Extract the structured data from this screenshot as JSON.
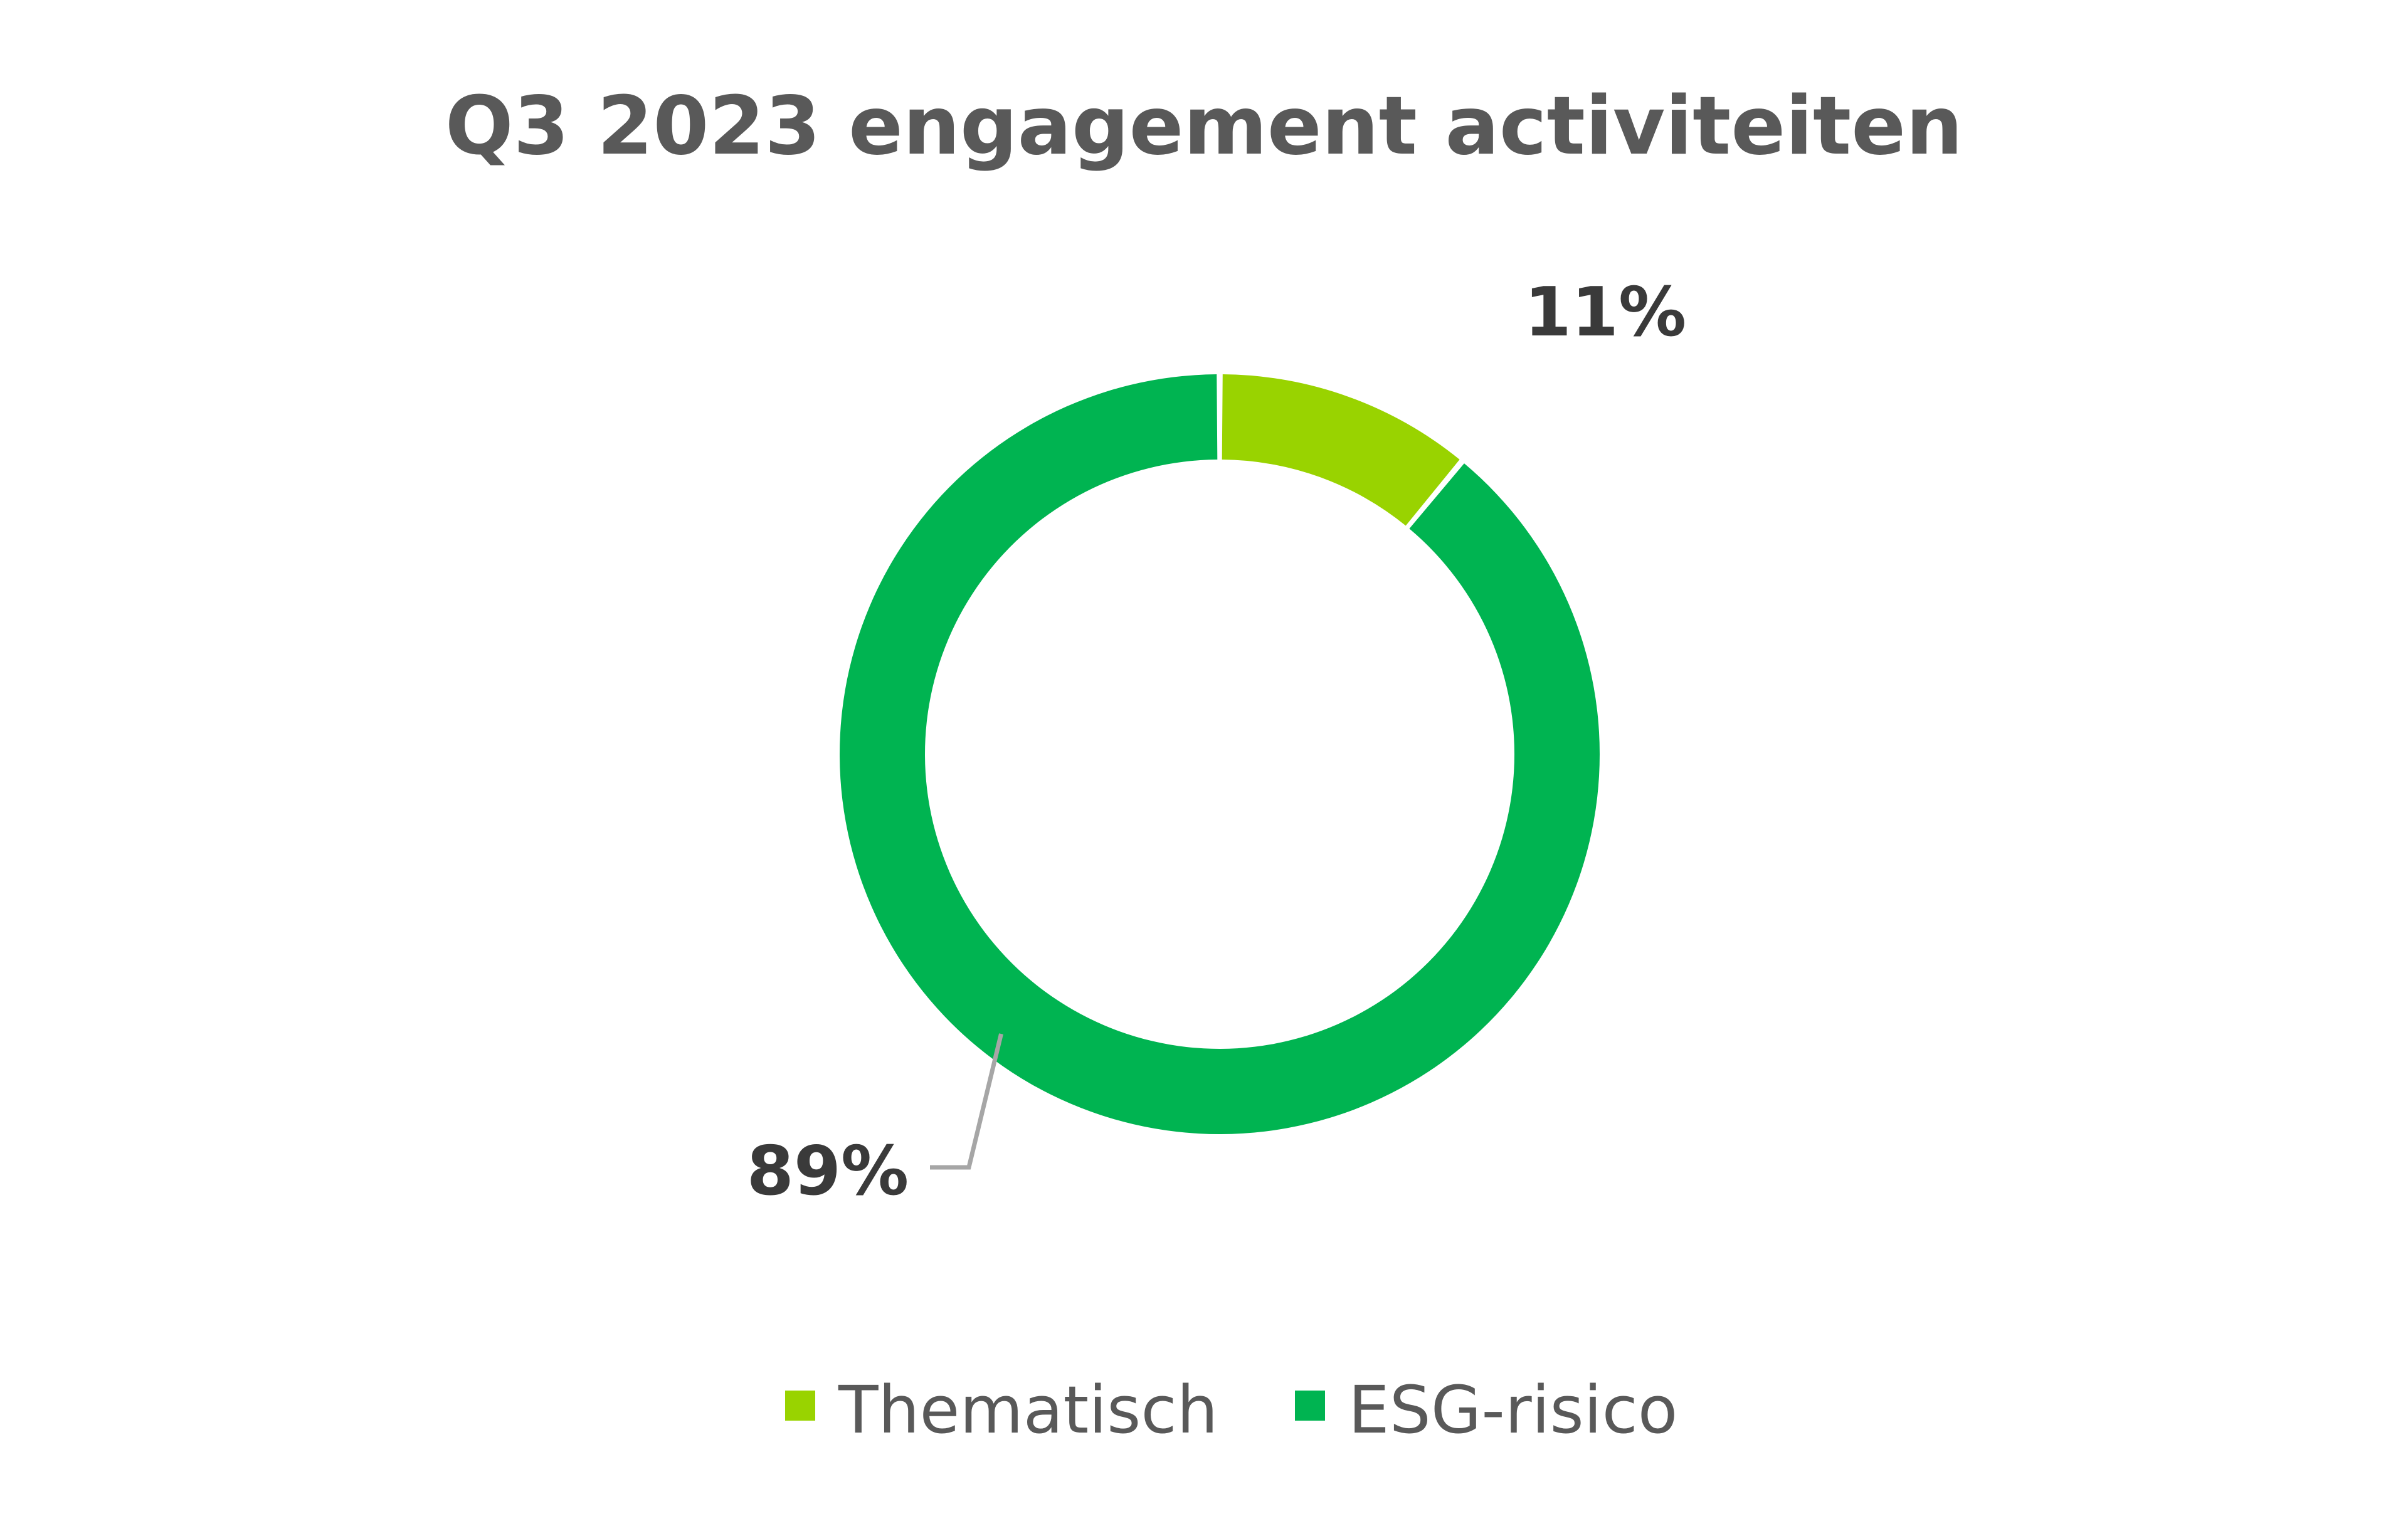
{
  "chart_data": {
    "type": "pie",
    "donut": true,
    "title": "Q3 2023 engagement activiteiten",
    "categories": [
      "Thematisch",
      "ESG-risico"
    ],
    "values": [
      11,
      89
    ],
    "labels": [
      "11%",
      "89%"
    ],
    "colors": [
      "#99d300",
      "#00b451"
    ],
    "legend": {
      "position": "bottom",
      "entries": [
        "Thematisch",
        "ESG-risico"
      ]
    },
    "leader_line_color": "#a6a6a6"
  }
}
